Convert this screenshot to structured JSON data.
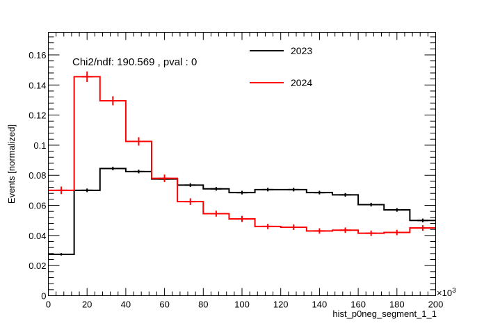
{
  "chart_data": {
    "type": "step",
    "ylabel": "Events [normalized]",
    "xlabel": "hist_p0neg_segment_1_1",
    "x_multiplier_label": "×10",
    "x_multiplier_exp": "3",
    "annotation": "Chi2/ndf: 190.569 , pval : 0",
    "xlim": [
      0,
      200
    ],
    "ylim": [
      0,
      0.175
    ],
    "x_ticks": [
      0,
      20,
      40,
      60,
      80,
      100,
      120,
      140,
      160,
      180,
      200
    ],
    "x_tick_labels": [
      "0",
      "20",
      "40",
      "60",
      "80",
      "100",
      "120",
      "140",
      "160",
      "180",
      "200"
    ],
    "y_ticks": [
      0,
      0.02,
      0.04,
      0.06,
      0.08,
      0.1,
      0.12,
      0.14,
      0.16
    ],
    "y_tick_labels": [
      "0",
      "0.02",
      "0.04",
      "0.06",
      "0.08",
      "0.1",
      "0.12",
      "0.14",
      "0.16"
    ],
    "bin_edges": [
      0,
      13.33,
      26.67,
      40,
      53.33,
      66.67,
      80,
      93.33,
      106.67,
      120,
      133.33,
      146.67,
      160,
      173.33,
      186.67,
      200
    ],
    "series": [
      {
        "name": "2023",
        "color": "#000000",
        "values": [
          0.0275,
          0.07,
          0.0845,
          0.0825,
          0.0775,
          0.0735,
          0.071,
          0.0685,
          0.0705,
          0.0705,
          0.0685,
          0.067,
          0.0605,
          0.057,
          0.05
        ],
        "errors": [
          0.0008,
          0.0012,
          0.0012,
          0.0012,
          0.0012,
          0.0012,
          0.0012,
          0.0012,
          0.0012,
          0.0012,
          0.0012,
          0.0012,
          0.0012,
          0.0012,
          0.0012
        ]
      },
      {
        "name": "2024",
        "color": "#ff0000",
        "values": [
          0.07,
          0.1455,
          0.1295,
          0.1025,
          0.078,
          0.0625,
          0.0545,
          0.051,
          0.046,
          0.0455,
          0.043,
          0.0435,
          0.0415,
          0.042,
          0.045
        ],
        "errors": [
          0.0025,
          0.0035,
          0.003,
          0.0028,
          0.0025,
          0.0022,
          0.002,
          0.002,
          0.0018,
          0.0018,
          0.0018,
          0.0018,
          0.0018,
          0.0018,
          0.0018
        ]
      }
    ]
  }
}
